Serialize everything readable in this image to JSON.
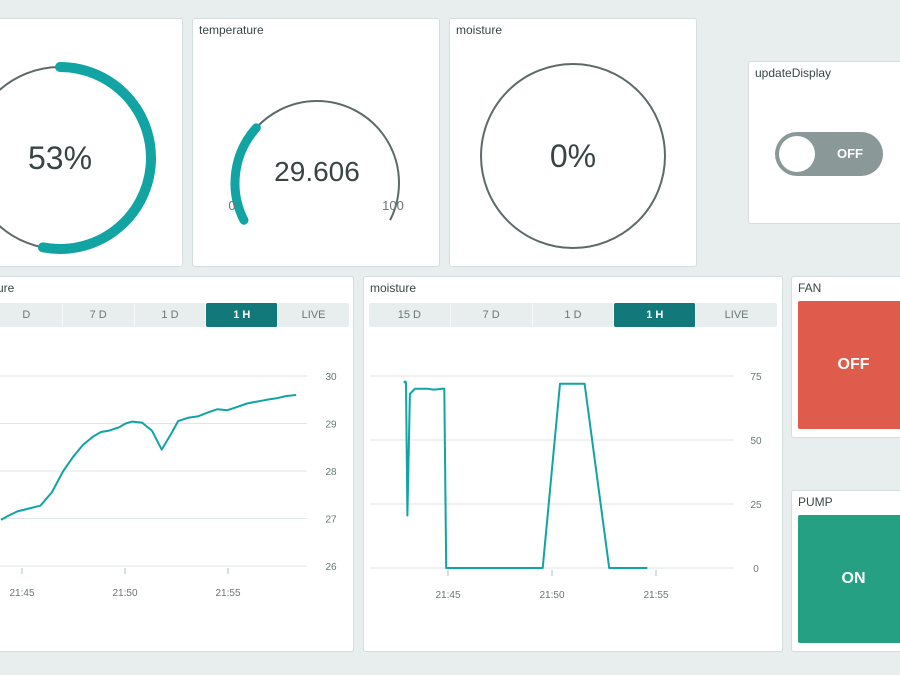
{
  "colors": {
    "accent": "#12a3a3",
    "track": "#5e6a6a",
    "fan_bg": "#df5b4b",
    "pump_bg": "#26a083",
    "toggle_bg": "#8a9898"
  },
  "widgets": {
    "humidity_gauge": {
      "value": 53,
      "max": 100,
      "display": "53%"
    },
    "temperature_gauge": {
      "title": "temperature",
      "value": 29.606,
      "min": 0,
      "max": 100,
      "display": "29.606",
      "min_label": "0",
      "max_label": "100"
    },
    "moisture_gauge": {
      "title": "moisture",
      "value": 0,
      "max": 100,
      "display": "0%"
    },
    "update_switch": {
      "title": "updateDisplay",
      "state": "OFF"
    },
    "fan_button": {
      "title": "FAN",
      "label": "OFF"
    },
    "pump_button": {
      "title": "PUMP",
      "label": "ON"
    }
  },
  "chart_data": [
    {
      "type": "line",
      "title": "ure",
      "ranges": [
        "D",
        "7 D",
        "1 D",
        "1 H",
        "LIVE"
      ],
      "active_range": "1 H",
      "x_ticks": [
        "21:45",
        "21:50",
        "21:55"
      ],
      "y_ticks": [
        "30",
        "29",
        "28",
        "27",
        "26"
      ],
      "ylim": [
        26,
        30
      ],
      "series": [
        {
          "name": "temperature",
          "x": [
            21.4,
            21.8,
            22.4,
            23.2,
            23.8,
            24.5,
            25.2,
            25.8,
            26.4,
            27.0,
            27.5,
            28.0,
            28.6,
            29.0,
            29.4,
            30.0,
            30.6,
            31.2,
            31.8,
            32.2,
            32.8,
            33.4,
            34.0,
            34.6,
            35.2,
            35.8,
            36.4,
            37.0,
            37.6,
            38.2,
            38.8,
            39.4
          ],
          "values": [
            26.97,
            27.05,
            27.15,
            27.22,
            27.27,
            27.55,
            28.0,
            28.3,
            28.55,
            28.72,
            28.82,
            28.85,
            28.92,
            29.0,
            29.04,
            29.02,
            28.85,
            28.45,
            28.8,
            29.05,
            29.12,
            29.15,
            29.23,
            29.3,
            29.28,
            29.35,
            29.42,
            29.46,
            29.5,
            29.53,
            29.58,
            29.6
          ]
        }
      ]
    },
    {
      "type": "line",
      "title": "moisture",
      "ranges": [
        "15 D",
        "7 D",
        "1 D",
        "1 H",
        "LIVE"
      ],
      "active_range": "1 H",
      "x_ticks": [
        "21:45",
        "21:50",
        "21:55"
      ],
      "y_ticks": [
        "75",
        "50",
        "25",
        "0"
      ],
      "ylim": [
        0,
        75
      ],
      "series": [
        {
          "name": "moisture",
          "x": [
            21.32,
            21.35,
            21.38,
            21.45,
            21.48,
            21.6,
            21.8,
            22.2,
            22.8,
            23.3,
            23.7,
            24.1,
            24.4,
            24.6,
            24.75,
            25.2,
            26.0,
            28.0,
            30.0,
            31.0,
            32.4,
            32.6,
            34.0,
            36.0,
            38.0,
            40.0,
            41.1
          ],
          "values": [
            73.0,
            72.8,
            72.5,
            72.8,
            72.0,
            20.5,
            68.0,
            70.0,
            70.0,
            70.0,
            69.7,
            69.8,
            70.0,
            70.0,
            0.0,
            0.0,
            0.0,
            0.0,
            0.0,
            0.0,
            0.0,
            0.0,
            72.0,
            72.0,
            0.0,
            0.0,
            0.0
          ]
        }
      ]
    }
  ]
}
